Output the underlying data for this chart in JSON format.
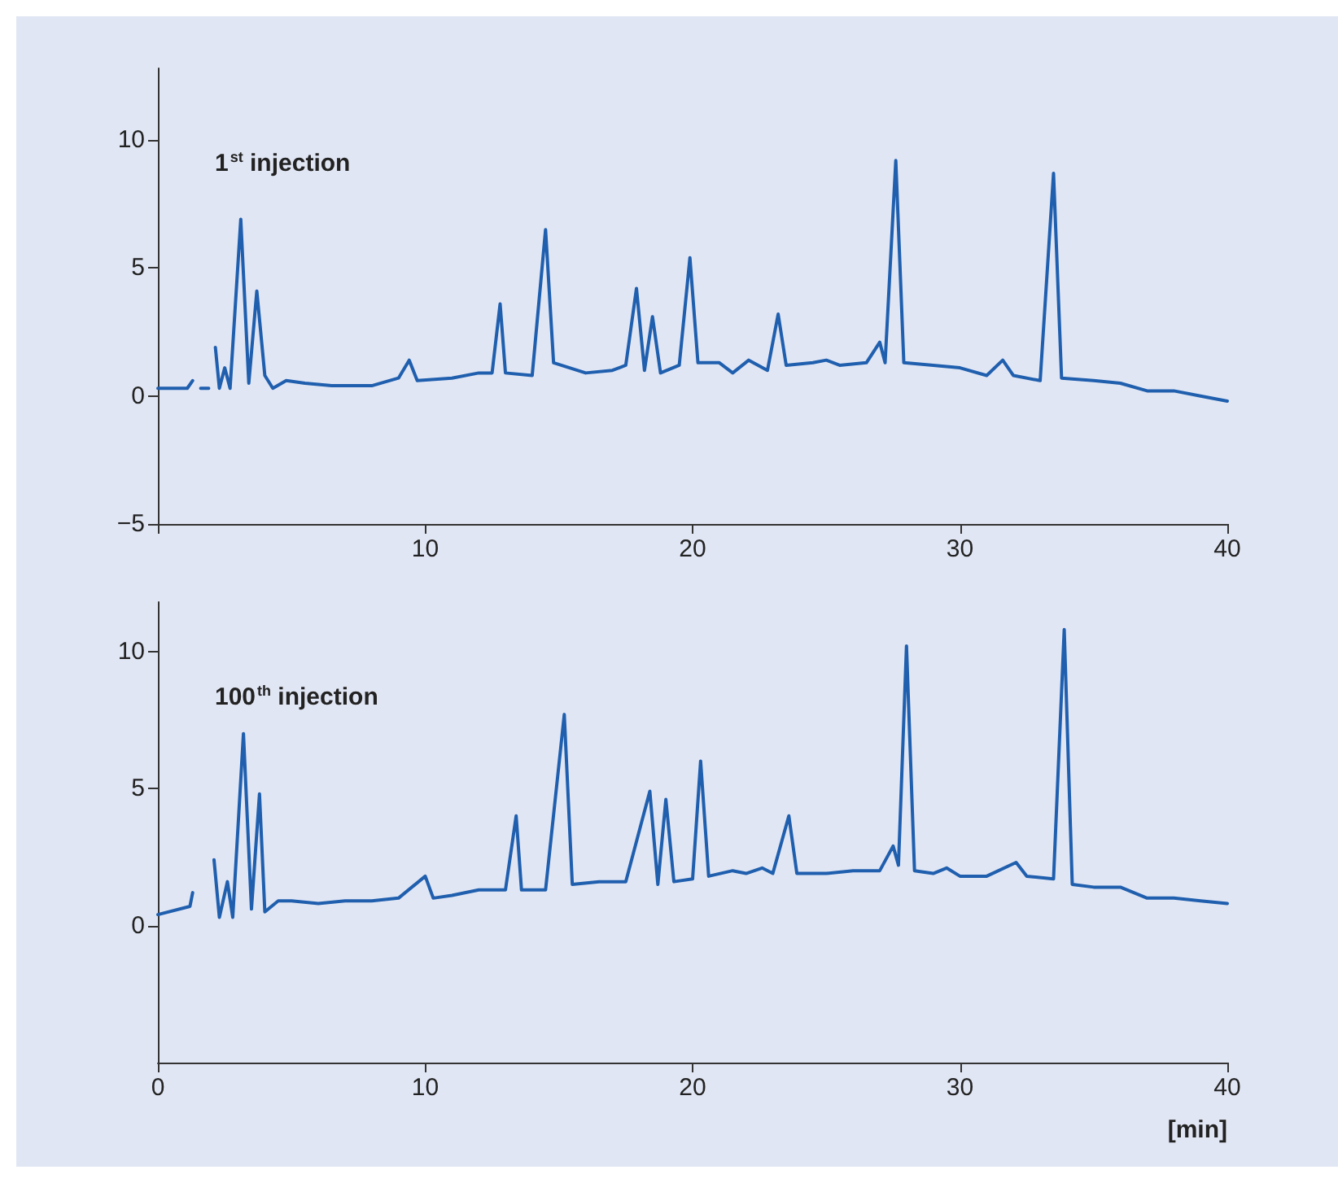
{
  "chart_data": [
    {
      "type": "line",
      "annotations": [
        "1$^{st}$ injection"
      ],
      "line_style": "solid",
      "marker": "none",
      "grid": false,
      "xlim": [
        0,
        40
      ],
      "xticks": [
        {
          "value": 0,
          "label": null
        },
        10,
        20,
        30,
        40
      ],
      "ylim": [
        -5,
        12.8
      ],
      "yticks": [
        -5,
        0,
        5,
        10
      ],
      "series": [
        {
          "color": "#1f5fae",
          "x": [
            0,
            1.1,
            1.3,
            1.45,
            1.6,
            1.9,
            2.0,
            2.15,
            2.3,
            2.5,
            2.7,
            3.1,
            3.4,
            3.7,
            4.0,
            4.3,
            4.8,
            5.5,
            6.5,
            8,
            9,
            9.4,
            9.7,
            11,
            12,
            12.5,
            12.8,
            13.0,
            14,
            14.5,
            14.8,
            16,
            17,
            17.5,
            17.9,
            18.2,
            18.5,
            18.8,
            19.5,
            19.9,
            20.2,
            21,
            21.5,
            22.1,
            22.8,
            23.2,
            23.5,
            24.5,
            25,
            25.5,
            26.5,
            27,
            27.2,
            27.6,
            27.9,
            29,
            30,
            31,
            31.6,
            32,
            33,
            33.5,
            33.8,
            35,
            36,
            37,
            38,
            39,
            40
          ],
          "values": [
            0.3,
            0.3,
            0.6,
            null,
            0.3,
            0.3,
            null,
            1.9,
            0.3,
            1.1,
            0.3,
            6.9,
            0.5,
            4.1,
            0.8,
            0.3,
            0.6,
            0.5,
            0.4,
            0.4,
            0.7,
            1.4,
            0.6,
            0.7,
            0.9,
            0.9,
            3.6,
            0.9,
            0.8,
            6.5,
            1.3,
            0.9,
            1.0,
            1.2,
            4.2,
            1.0,
            3.1,
            0.9,
            1.2,
            5.4,
            1.3,
            1.3,
            0.9,
            1.4,
            1.0,
            3.2,
            1.2,
            1.3,
            1.4,
            1.2,
            1.3,
            2.1,
            1.3,
            9.2,
            1.3,
            1.2,
            1.1,
            0.8,
            1.4,
            0.8,
            0.6,
            8.7,
            0.7,
            0.6,
            0.5,
            0.2,
            0.2,
            0,
            -0.2
          ]
        }
      ]
    },
    {
      "type": "line",
      "annotations": [
        "100$^{th}$ injection"
      ],
      "xlabel": "[min]",
      "line_style": "solid",
      "marker": "none",
      "grid": false,
      "xlim": [
        0,
        40
      ],
      "xticks": [
        0,
        10,
        20,
        30,
        40
      ],
      "ylim": [
        -5,
        11.8
      ],
      "yticks": [
        0,
        5,
        10
      ],
      "series": [
        {
          "color": "#1f5fae",
          "x": [
            0,
            1.2,
            1.3,
            1.7,
            2.1,
            2.3,
            2.6,
            2.8,
            3.2,
            3.5,
            3.8,
            4.0,
            4.5,
            5,
            6,
            7,
            8,
            9,
            10,
            10.3,
            11,
            12,
            13,
            13.4,
            13.6,
            14.5,
            15.2,
            15.5,
            16.5,
            17.5,
            18.4,
            18.7,
            19.0,
            19.3,
            20,
            20.3,
            20.6,
            21.5,
            22,
            22.6,
            23,
            23.6,
            23.9,
            25,
            26,
            27,
            27.5,
            27.7,
            28,
            28.3,
            29,
            29.5,
            30,
            31,
            32.1,
            32.5,
            33.5,
            33.9,
            34.2,
            35,
            36,
            37,
            38,
            39,
            40
          ],
          "values": [
            0.4,
            0.7,
            1.2,
            null,
            2.4,
            0.3,
            1.6,
            0.3,
            7.0,
            0.6,
            4.8,
            0.5,
            0.9,
            0.9,
            0.8,
            0.9,
            0.9,
            1.0,
            1.8,
            1.0,
            1.1,
            1.3,
            1.3,
            4.0,
            1.3,
            1.3,
            7.7,
            1.5,
            1.6,
            1.6,
            4.9,
            1.5,
            4.6,
            1.6,
            1.7,
            6.0,
            1.8,
            2.0,
            1.9,
            2.1,
            1.9,
            4.0,
            1.9,
            1.9,
            2.0,
            2.0,
            2.9,
            2.2,
            10.2,
            2.0,
            1.9,
            2.1,
            1.8,
            1.8,
            2.3,
            1.8,
            1.7,
            10.8,
            1.5,
            1.4,
            1.4,
            1.0,
            1.0,
            0.9,
            0.8
          ]
        }
      ]
    }
  ]
}
